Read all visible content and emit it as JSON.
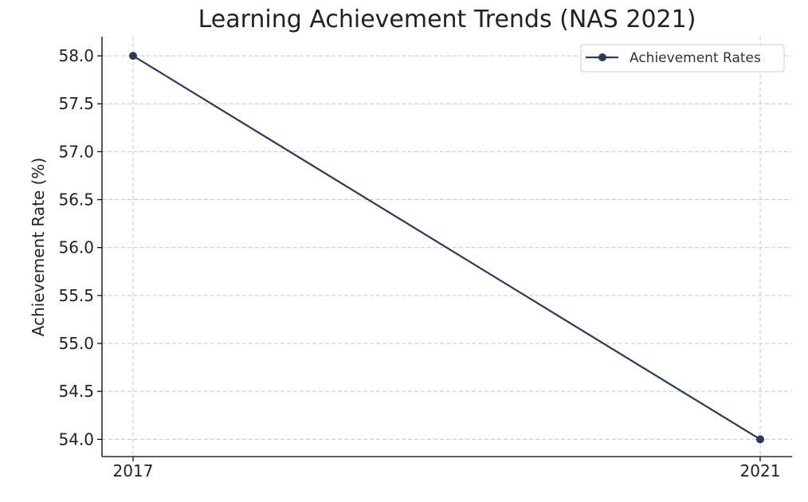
{
  "chart_data": {
    "type": "line",
    "title": "Learning Achievement Trends (NAS 2021)",
    "xlabel": "",
    "ylabel": "Achievement Rate (%)",
    "x": [
      "2017",
      "2021"
    ],
    "series": [
      {
        "name": "Achievement Rates",
        "values": [
          58.0,
          54.0
        ]
      }
    ],
    "ylim": [
      53.82,
      58.2
    ],
    "yticks": [
      "54.0",
      "54.5",
      "55.0",
      "55.5",
      "56.0",
      "56.5",
      "57.0",
      "57.5",
      "58.0"
    ],
    "grid": true,
    "legend_position": "top-right",
    "line_color": "#2b3a55"
  }
}
